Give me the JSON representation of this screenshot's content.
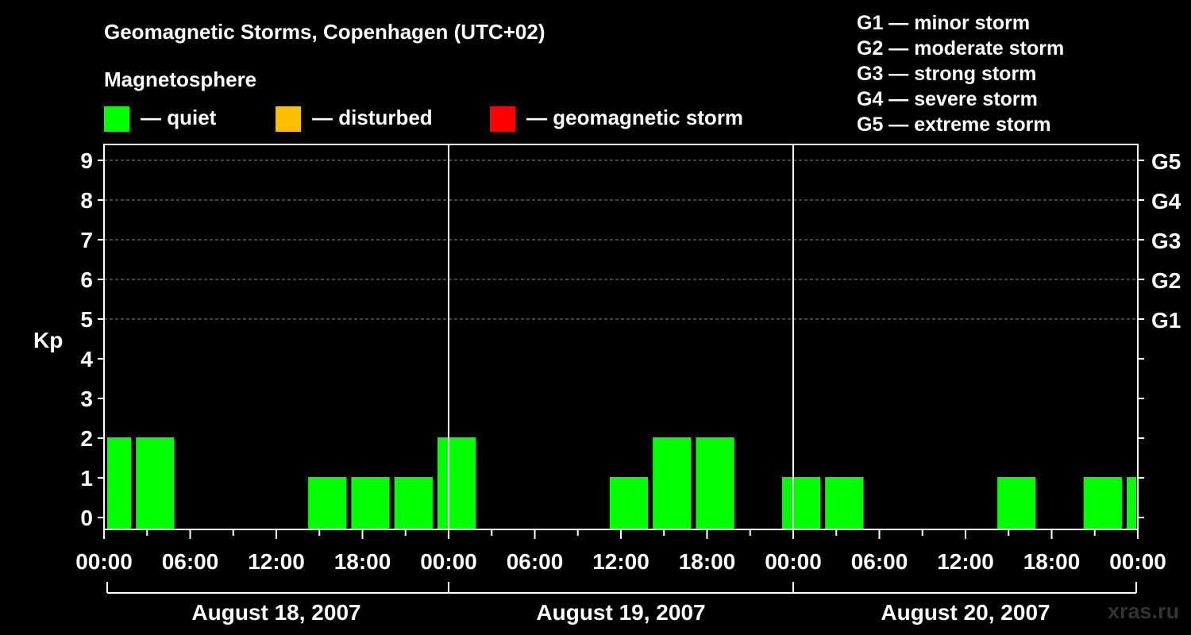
{
  "chart_data": {
    "type": "bar",
    "title": "Geomagnetic Storms, Copenhagen (UTC+02)",
    "ylabel": "Kp",
    "ylim": [
      0,
      9
    ],
    "yticks": [
      "0",
      "1",
      "2",
      "3",
      "4",
      "5",
      "6",
      "7",
      "8",
      "9"
    ],
    "g_scale": [
      {
        "label": "G1",
        "kp": 5
      },
      {
        "label": "G2",
        "kp": 6
      },
      {
        "label": "G3",
        "kp": 7
      },
      {
        "label": "G4",
        "kp": 8
      },
      {
        "label": "G5",
        "kp": 9
      }
    ],
    "magnetosphere": {
      "title": "Magnetosphere",
      "states": [
        {
          "label": "— quiet",
          "color": "#00ff00"
        },
        {
          "label": "— disturbed",
          "color": "#ffbf00"
        },
        {
          "label": "— geomagnetic storm",
          "color": "#ff0000"
        }
      ]
    },
    "storm_legend": [
      "G1 — minor storm",
      "G2 — moderate storm",
      "G3 — strong storm",
      "G4 — severe storm",
      "G5 — extreme storm"
    ],
    "x_hours": [
      0,
      72
    ],
    "xtick_labels": [
      "00:00",
      "06:00",
      "12:00",
      "18:00",
      "00:00",
      "06:00",
      "12:00",
      "18:00",
      "00:00",
      "06:00",
      "12:00",
      "18:00",
      "00:00"
    ],
    "days": [
      "August 18, 2007",
      "August 19, 2007",
      "August 20, 2007"
    ],
    "bars": [
      {
        "start": 0,
        "end": 2,
        "kp": 2,
        "state": "quiet"
      },
      {
        "start": 2,
        "end": 5,
        "kp": 2,
        "state": "quiet"
      },
      {
        "start": 14,
        "end": 17,
        "kp": 1,
        "state": "quiet"
      },
      {
        "start": 17,
        "end": 20,
        "kp": 1,
        "state": "quiet"
      },
      {
        "start": 20,
        "end": 23,
        "kp": 1,
        "state": "quiet"
      },
      {
        "start": 23,
        "end": 26,
        "kp": 2,
        "state": "quiet"
      },
      {
        "start": 35,
        "end": 38,
        "kp": 1,
        "state": "quiet"
      },
      {
        "start": 38,
        "end": 41,
        "kp": 2,
        "state": "quiet"
      },
      {
        "start": 41,
        "end": 44,
        "kp": 2,
        "state": "quiet"
      },
      {
        "start": 47,
        "end": 50,
        "kp": 1,
        "state": "quiet"
      },
      {
        "start": 50,
        "end": 53,
        "kp": 1,
        "state": "quiet"
      },
      {
        "start": 62,
        "end": 65,
        "kp": 1,
        "state": "quiet"
      },
      {
        "start": 68,
        "end": 71,
        "kp": 1,
        "state": "quiet"
      },
      {
        "start": 71,
        "end": 72,
        "kp": 1,
        "state": "quiet"
      }
    ],
    "grid": true,
    "legend_position": "top"
  },
  "watermark": "xras.ru"
}
